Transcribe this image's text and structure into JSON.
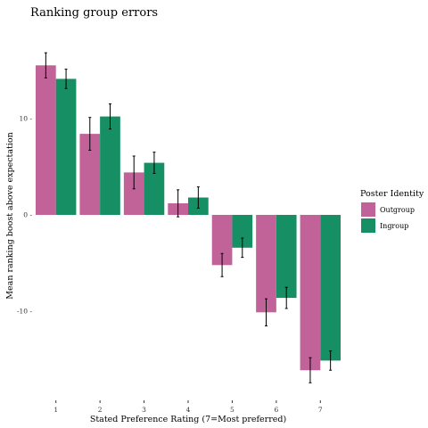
{
  "chart_data": {
    "type": "bar",
    "title": "Ranking group errors",
    "xlabel": "Stated Preference Rating (7=Most preferred)",
    "ylabel": "Mean ranking boost above expectation",
    "categories": [
      "1",
      "2",
      "3",
      "4",
      "5",
      "6",
      "7"
    ],
    "y_ticks": [
      -10,
      0,
      10
    ],
    "y_tick_labels": [
      "-10 -",
      "0 -",
      "10 -"
    ],
    "ylim": [
      -19.5,
      19.5
    ],
    "grid": false,
    "legend": {
      "title": "Poster Identity",
      "position": "right"
    },
    "series": [
      {
        "name": "Outgroup",
        "color": "#c16399",
        "values": [
          15.5,
          8.4,
          4.4,
          1.2,
          -5.2,
          -10.1,
          -16.1
        ],
        "error": [
          1.3,
          1.7,
          1.7,
          1.4,
          1.2,
          1.4,
          1.3
        ]
      },
      {
        "name": "Ingroup",
        "color": "#168f64",
        "values": [
          14.1,
          10.2,
          5.4,
          1.8,
          -3.4,
          -8.6,
          -15.1
        ],
        "error": [
          1.0,
          1.3,
          1.1,
          1.1,
          1.0,
          1.1,
          1.0
        ]
      }
    ]
  }
}
